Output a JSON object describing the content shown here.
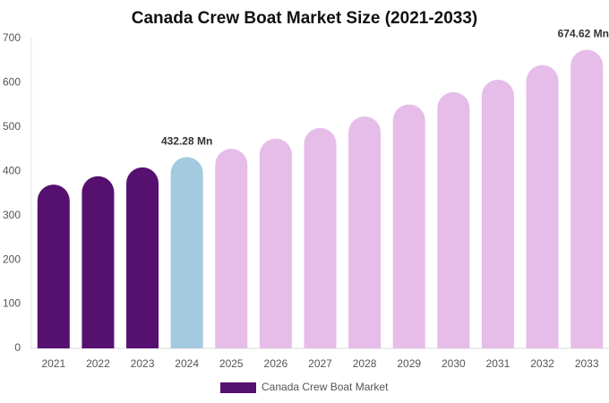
{
  "chart_data": {
    "type": "bar",
    "title": "Canada Crew Boat Market Size (2021-2033)",
    "categories": [
      "2021",
      "2022",
      "2023",
      "2024",
      "2025",
      "2026",
      "2027",
      "2028",
      "2029",
      "2030",
      "2031",
      "2032",
      "2033"
    ],
    "series": [
      {
        "name": "Canada Crew Boat Market",
        "color": "#561170",
        "values": [
          370,
          389,
          409,
          432.28,
          451,
          474,
          498,
          524,
          551,
          579,
          607,
          640,
          674.62
        ],
        "value_labels": [
          null,
          null,
          null,
          "432.28 Mn",
          null,
          null,
          null,
          null,
          null,
          null,
          null,
          null,
          "674.62 Mn"
        ],
        "colors": [
          "#561170",
          "#561170",
          "#561170",
          "#a4cadf",
          "#e6bde9",
          "#e6bde9",
          "#e6bde9",
          "#e6bde9",
          "#e6bde9",
          "#e6bde9",
          "#e6bde9",
          "#e6bde9",
          "#e6bde9"
        ]
      }
    ],
    "ylim": [
      0,
      700
    ],
    "yticks": [
      0,
      100,
      200,
      300,
      400,
      500,
      600,
      700
    ],
    "grid": false,
    "legend": "bottom"
  }
}
